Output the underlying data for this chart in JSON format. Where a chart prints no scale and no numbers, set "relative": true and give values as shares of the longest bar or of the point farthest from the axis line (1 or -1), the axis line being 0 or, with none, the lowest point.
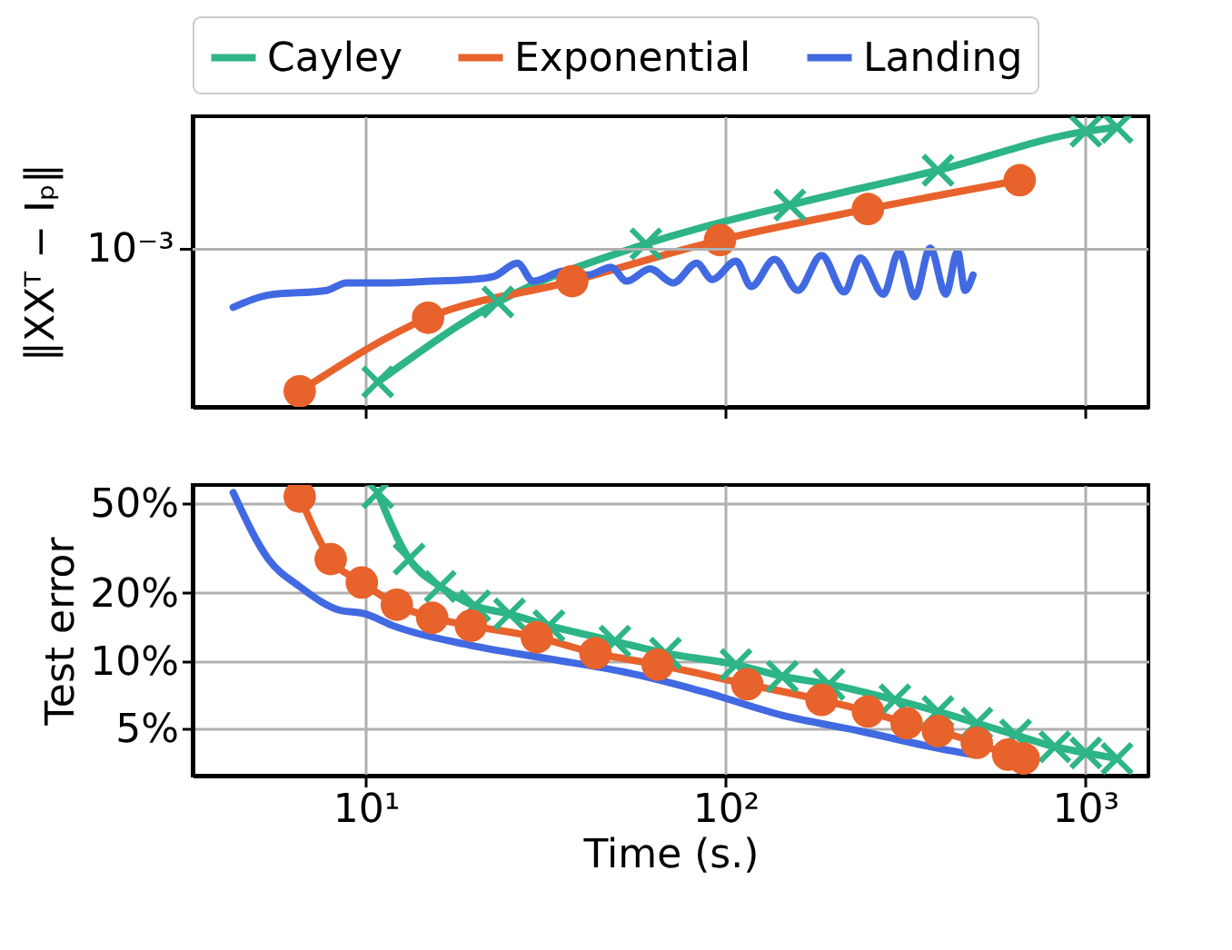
{
  "chart_data": [
    {
      "type": "line",
      "ylabel": "‖XXᵀ − Iₚ‖",
      "relative": true,
      "log": "x",
      "xlim": [
        3.3,
        1500
      ],
      "xticks": [
        10,
        100,
        1000
      ],
      "ref_lines": [
        {
          "axis": "y",
          "value": 0.564,
          "label": "10⁻³",
          "color": "#b0b0b0"
        }
      ],
      "tick_labels": "y",
      "grid": true,
      "legend": "top",
      "line_style": "solid",
      "series": [
        {
          "name": "Cayley",
          "color": "#2db487",
          "marker": "cross",
          "x": [
            10.8,
            23.3,
            60.1,
            151,
            390,
            1005,
            1227
          ],
          "values": [
            0.089,
            0.375,
            0.583,
            0.722,
            0.847,
            0.986,
            1.0
          ]
        },
        {
          "name": "Exponential",
          "color": "#e8622c",
          "marker": "circle",
          "x": [
            6.55,
            14.9,
            37.5,
            96.6,
            249,
            658
          ],
          "values": [
            0.056,
            0.319,
            0.45,
            0.597,
            0.708,
            0.811
          ]
        },
        {
          "name": "Landing",
          "color": "#4169e1",
          "marker": "none",
          "x": [
            4.28,
            5.36,
            7.8,
            8.83,
            11.9,
            15.3,
            19.6,
            22.7,
            26.4,
            29.2,
            35.6,
            41.4,
            48.1,
            53.1,
            61.7,
            71.6,
            83.2,
            91.9,
            107,
            118,
            137,
            159,
            185,
            214,
            237,
            275,
            304,
            336,
            371,
            410,
            442,
            464,
            488
          ],
          "values": [
            0.356,
            0.4,
            0.417,
            0.444,
            0.444,
            0.45,
            0.456,
            0.467,
            0.514,
            0.45,
            0.486,
            0.472,
            0.5,
            0.45,
            0.494,
            0.444,
            0.514,
            0.456,
            0.522,
            0.431,
            0.528,
            0.417,
            0.542,
            0.411,
            0.533,
            0.403,
            0.556,
            0.394,
            0.569,
            0.403,
            0.556,
            0.417,
            0.472
          ]
        }
      ]
    },
    {
      "type": "line",
      "xlabel": "Time (s.)",
      "ylabel": "Test error",
      "log": "xy",
      "xlim": [
        3.3,
        1500
      ],
      "xticks": [
        {
          "value": 10,
          "label": "10¹"
        },
        {
          "value": 100,
          "label": "10²"
        },
        {
          "value": 1000,
          "label": "10³"
        }
      ],
      "ylim": [
        3.1,
        60
      ],
      "yticks": [
        {
          "value": 5,
          "label": "5%"
        },
        {
          "value": 10,
          "label": "10%"
        },
        {
          "value": 20,
          "label": "20%"
        },
        {
          "value": 50,
          "label": "50%"
        }
      ],
      "grid": true,
      "line_style": "solid",
      "series": [
        {
          "name": "Cayley",
          "color": "#2db487",
          "marker": "cross",
          "x": [
            10.8,
            13.2,
            16.1,
            20.1,
            25.1,
            32.3,
            49.3,
            68.1,
            107,
            144,
            194,
            296,
            390,
            500,
            641,
            824,
            1005,
            1227
          ],
          "values": [
            55.5,
            28.2,
            21.3,
            17.5,
            16.1,
            14.3,
            12.2,
            10.8,
            9.61,
            8.53,
            7.87,
            6.71,
            5.96,
            5.29,
            4.69,
            4.16,
            3.91,
            3.69
          ]
        },
        {
          "name": "Exponential",
          "color": "#e8622c",
          "marker": "circle",
          "x": [
            6.55,
            7.99,
            9.75,
            12.2,
            15.3,
            19.6,
            29.9,
            43.5,
            64.8,
            115,
            185,
            249,
            319,
            390,
            500,
            611,
            675
          ],
          "values": [
            53.3,
            28.2,
            22.2,
            17.7,
            15.5,
            14.3,
            12.7,
            10.8,
            9.61,
            7.87,
            6.71,
            5.96,
            5.29,
            4.88,
            4.33,
            3.84,
            3.69
          ]
        },
        {
          "name": "Landing",
          "color": "#4169e1",
          "marker": "none",
          "x": [
            4.28,
            5.36,
            6.55,
            8.4,
            10,
            11.9,
            19.6,
            32.3,
            53.1,
            87.4,
            144,
            237,
            390,
            488
          ],
          "values": [
            55.5,
            28.2,
            21.3,
            16.8,
            16.1,
            14.3,
            11.7,
            10.2,
            8.87,
            7.27,
            5.73,
            4.88,
            4.1,
            3.84
          ]
        }
      ]
    }
  ]
}
